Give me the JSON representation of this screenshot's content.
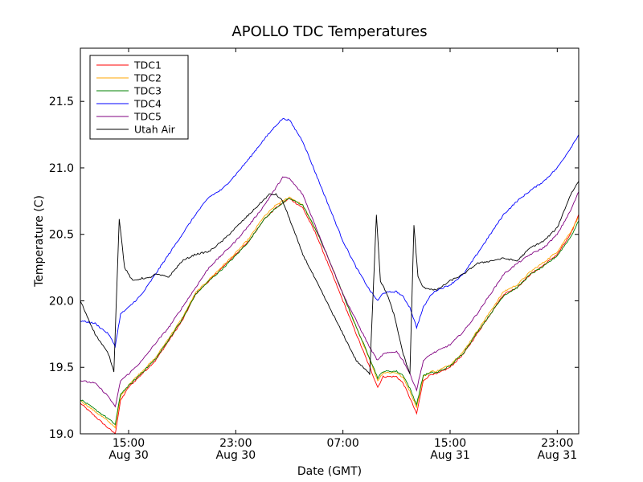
{
  "chart_data": {
    "type": "line",
    "title": "APOLLO TDC Temperatures",
    "xlabel": "Date (GMT)",
    "ylabel": "Temperature (C)",
    "xlim_hours": [
      -3.6,
      33.6
    ],
    "ylim": [
      19.0,
      21.9
    ],
    "grid": false,
    "legend_position": "top-left",
    "x_ticks": [
      {
        "hours": 0,
        "time": "15:00",
        "date": "Aug 30"
      },
      {
        "hours": 8,
        "time": "23:00",
        "date": "Aug 30"
      },
      {
        "hours": 16,
        "time": "07:00",
        "date": ""
      },
      {
        "hours": 24,
        "time": "15:00",
        "date": "Aug 31"
      },
      {
        "hours": 32,
        "time": "23:00",
        "date": "Aug 31"
      }
    ],
    "y_ticks": [
      "19.0",
      "19.5",
      "20.0",
      "20.5",
      "21.0",
      "21.5"
    ],
    "series": [
      {
        "name": "TDC1",
        "color": "#ff0000",
        "x": [
          -3.6,
          -1.6,
          -1.0,
          -0.6,
          0,
          1,
          2,
          3,
          4,
          5,
          6,
          7,
          8,
          9,
          10,
          11,
          12,
          13,
          14,
          15,
          16,
          17,
          18,
          18.6,
          19,
          20,
          20.5,
          21,
          21.5,
          22,
          22.6,
          23,
          24,
          25,
          26,
          27,
          28,
          29,
          30,
          31,
          32,
          33,
          33.6
        ],
        "y": [
          19.23,
          19.05,
          19.0,
          19.25,
          19.35,
          19.45,
          19.55,
          19.7,
          19.85,
          20.05,
          20.15,
          20.25,
          20.35,
          20.45,
          20.6,
          20.7,
          20.77,
          20.7,
          20.5,
          20.25,
          20.0,
          19.75,
          19.5,
          19.35,
          19.43,
          19.43,
          19.38,
          19.27,
          19.15,
          19.4,
          19.45,
          19.45,
          19.5,
          19.6,
          19.75,
          19.9,
          20.05,
          20.1,
          20.2,
          20.27,
          20.35,
          20.5,
          20.65
        ]
      },
      {
        "name": "TDC2",
        "color": "#ffa500",
        "x": [
          -3.6,
          -1.6,
          -1.0,
          -0.6,
          0,
          1,
          2,
          3,
          4,
          5,
          6,
          7,
          8,
          9,
          10,
          11,
          12,
          13,
          14,
          15,
          16,
          17,
          18,
          18.6,
          19,
          20,
          20.5,
          21,
          21.5,
          22,
          22.6,
          23,
          24,
          25,
          26,
          27,
          28,
          29,
          30,
          31,
          32,
          33,
          33.6
        ],
        "y": [
          19.25,
          19.1,
          19.05,
          19.28,
          19.37,
          19.47,
          19.57,
          19.72,
          19.87,
          20.06,
          20.16,
          20.26,
          20.36,
          20.47,
          20.62,
          20.72,
          20.78,
          20.72,
          20.53,
          20.3,
          20.05,
          19.8,
          19.56,
          19.4,
          19.46,
          19.46,
          19.42,
          19.32,
          19.2,
          19.43,
          19.47,
          19.47,
          19.52,
          19.62,
          19.77,
          19.92,
          20.07,
          20.12,
          20.22,
          20.29,
          20.37,
          20.52,
          20.63
        ]
      },
      {
        "name": "TDC3",
        "color": "#008000",
        "x": [
          -3.6,
          -1.6,
          -1.0,
          -0.6,
          0,
          1,
          2,
          3,
          4,
          5,
          6,
          7,
          8,
          9,
          10,
          11,
          12,
          13,
          14,
          15,
          16,
          17,
          18,
          18.6,
          19,
          20,
          20.5,
          21,
          21.5,
          22,
          22.6,
          23,
          24,
          25,
          26,
          27,
          28,
          29,
          30,
          31,
          32,
          33,
          33.6
        ],
        "y": [
          19.26,
          19.12,
          19.07,
          19.3,
          19.36,
          19.46,
          19.56,
          19.71,
          19.86,
          20.05,
          20.15,
          20.24,
          20.34,
          20.45,
          20.6,
          20.7,
          20.77,
          20.72,
          20.53,
          20.3,
          20.05,
          19.8,
          19.57,
          19.42,
          19.47,
          19.47,
          19.44,
          19.34,
          19.22,
          19.44,
          19.46,
          19.46,
          19.51,
          19.61,
          19.76,
          19.9,
          20.04,
          20.1,
          20.2,
          20.26,
          20.34,
          20.48,
          20.6
        ]
      },
      {
        "name": "TDC4",
        "color": "#0000ff",
        "x": [
          -3.6,
          -2.5,
          -1.5,
          -1.0,
          -0.6,
          0,
          1,
          2,
          3,
          4,
          5,
          6,
          7,
          8,
          9,
          10,
          11,
          11.5,
          12,
          13,
          14,
          15,
          16,
          17,
          18,
          18.6,
          19,
          20,
          20.5,
          21,
          21.5,
          22,
          22.6,
          23,
          24,
          25,
          26,
          27,
          28,
          29,
          30,
          31,
          32,
          33,
          33.6
        ],
        "y": [
          19.85,
          19.83,
          19.75,
          19.66,
          19.9,
          19.95,
          20.05,
          20.2,
          20.35,
          20.5,
          20.65,
          20.78,
          20.84,
          20.95,
          21.07,
          21.2,
          21.32,
          21.37,
          21.36,
          21.2,
          20.95,
          20.7,
          20.45,
          20.25,
          20.08,
          20.0,
          20.06,
          20.07,
          20.03,
          19.95,
          19.8,
          19.95,
          20.05,
          20.08,
          20.12,
          20.2,
          20.35,
          20.5,
          20.65,
          20.75,
          20.83,
          20.9,
          21.0,
          21.15,
          21.25
        ]
      },
      {
        "name": "TDC5",
        "color": "#800080",
        "x": [
          -3.6,
          -2.5,
          -1.5,
          -1.0,
          -0.6,
          0,
          1,
          2,
          3,
          4,
          5,
          6,
          7,
          8,
          9,
          10,
          11,
          11.5,
          12,
          13,
          14,
          15,
          16,
          17,
          18,
          18.6,
          19,
          20,
          20.5,
          21,
          21.5,
          22,
          22.6,
          23,
          24,
          25,
          26,
          27,
          28,
          29,
          30,
          31,
          32,
          33,
          33.6
        ],
        "y": [
          19.4,
          19.38,
          19.28,
          19.2,
          19.4,
          19.45,
          19.55,
          19.68,
          19.8,
          19.95,
          20.1,
          20.25,
          20.35,
          20.45,
          20.57,
          20.7,
          20.85,
          20.93,
          20.92,
          20.8,
          20.55,
          20.3,
          20.05,
          19.85,
          19.65,
          19.55,
          19.6,
          19.62,
          19.55,
          19.45,
          19.33,
          19.55,
          19.6,
          19.62,
          19.67,
          19.77,
          19.9,
          20.05,
          20.2,
          20.28,
          20.35,
          20.4,
          20.5,
          20.68,
          20.82
        ]
      },
      {
        "name": "Utah Air",
        "color": "#000000",
        "x": [
          -3.6,
          -2.5,
          -1.5,
          -1.1,
          -0.7,
          -0.3,
          0.3,
          1,
          1.5,
          2,
          3,
          4,
          5,
          6,
          7,
          8,
          9,
          10,
          10.5,
          11,
          11.5,
          12,
          13,
          14,
          15,
          16,
          17,
          18,
          18.5,
          18.8,
          19.3,
          19.8,
          20.5,
          21.0,
          21.3,
          21.6,
          22.0,
          23,
          24,
          25,
          26,
          27,
          28,
          29,
          30,
          31,
          32,
          33,
          33.6
        ],
        "y": [
          20.0,
          19.75,
          19.6,
          19.47,
          20.62,
          20.25,
          20.15,
          20.17,
          20.17,
          20.2,
          20.18,
          20.3,
          20.35,
          20.37,
          20.45,
          20.55,
          20.65,
          20.75,
          20.8,
          20.8,
          20.75,
          20.62,
          20.35,
          20.15,
          19.95,
          19.75,
          19.55,
          19.45,
          20.65,
          20.15,
          20.05,
          19.9,
          19.6,
          19.45,
          20.57,
          20.18,
          20.1,
          20.08,
          20.15,
          20.2,
          20.28,
          20.3,
          20.32,
          20.3,
          20.4,
          20.45,
          20.55,
          20.8,
          20.9
        ]
      }
    ]
  }
}
